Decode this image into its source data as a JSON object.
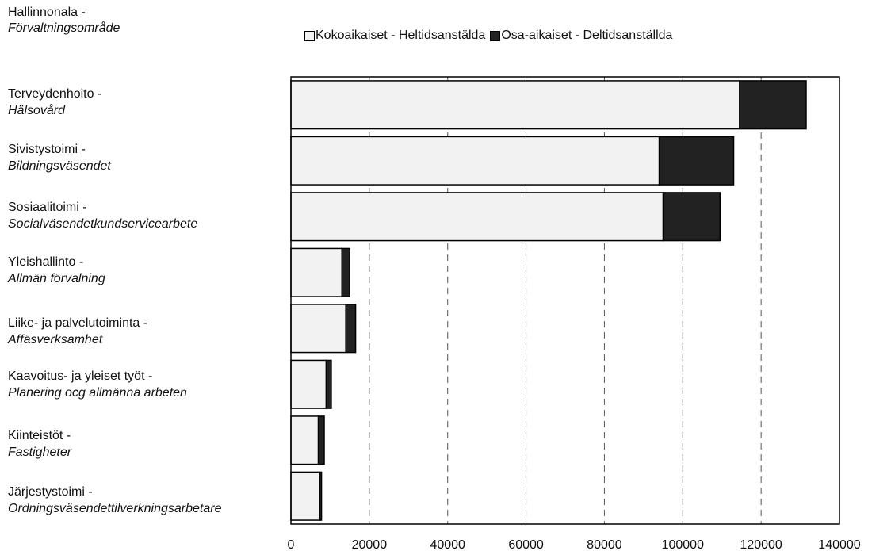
{
  "chart_data": {
    "type": "bar",
    "orientation": "horizontal",
    "stacked": true,
    "category_axis_title": {
      "fi": "Hallinnonala -",
      "sv": "Förvaltningsområde"
    },
    "categories": [
      {
        "fi": "Terveydenhoito -",
        "sv": "Hälsovård"
      },
      {
        "fi": "Sivistystoimi -",
        "sv": "Bildningsväsendet"
      },
      {
        "fi": "Sosiaalitoimi -",
        "sv": "Socialväsendetkundservicearbete"
      },
      {
        "fi": "Yleishallinto -",
        "sv": "Allmän förvalning"
      },
      {
        "fi": "Liike- ja palvelutoiminta -",
        "sv": "Affäsverksamhet"
      },
      {
        "fi": "Kaavoitus- ja yleiset työt -",
        "sv": "Planering ocg allmänna arbeten"
      },
      {
        "fi": "Kiinteistöt -",
        "sv": "Fastigheter"
      },
      {
        "fi": "Järjestystoimi -",
        "sv": "Ordningsväsendettilverkningsarbetare"
      }
    ],
    "series": [
      {
        "name": "Kokoaikaiset - Heltidsanstälda",
        "color": "#f2f2f2",
        "values": [
          114500,
          94000,
          95000,
          13000,
          14000,
          9000,
          7000,
          7300
        ]
      },
      {
        "name": "Osa-aikaiset - Deltidsanställda",
        "color": "#222222",
        "values": [
          17000,
          19000,
          14500,
          2000,
          2500,
          1300,
          1500,
          500
        ]
      }
    ],
    "xlim": [
      0,
      140000
    ],
    "xticks": [
      "0",
      "20000",
      "40000",
      "60000",
      "80000",
      "100000",
      "120000",
      "140000"
    ],
    "grid": "vertical dashed",
    "legend_position": "top"
  }
}
